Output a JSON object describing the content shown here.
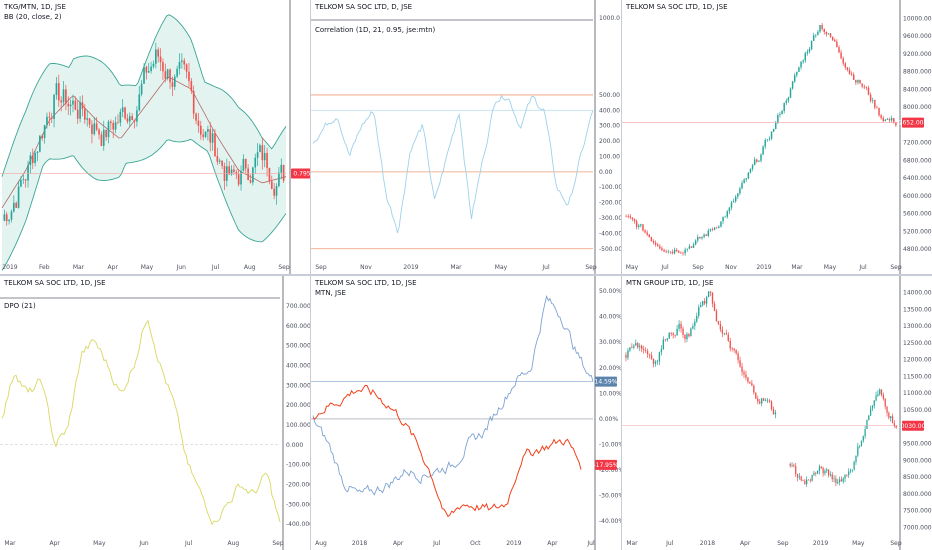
{
  "colors": {
    "up": "#26a69a",
    "down": "#ef5350",
    "bb_band": "#3aa595",
    "bb_fill": "#e3f4f0",
    "bb_mid": "#b26a6a",
    "corr_line": "#9fd1ea",
    "corr_level": "#ef9a72",
    "dpo_line": "#d8d862",
    "spread_blue": "#7ea3d1",
    "spread_red": "#f2411c",
    "price_marker": "#f23645",
    "blue_marker": "#5b84ad"
  },
  "panes": [
    {
      "id": "tkg-mtn",
      "title": "TKG/MTN, 1D, JSE",
      "subtitle": "BB (20, close, 2)",
      "chart_data": {
        "type": "candlestick",
        "x_ticks": [
          "2019",
          "Feb",
          "Mar",
          "Apr",
          "May",
          "Jun",
          "Jul",
          "Aug",
          "Sep"
        ],
        "marker_label": "0.795",
        "y_ticks": [],
        "y_range": [
          0.66,
          1.05
        ],
        "bands": true
      }
    },
    {
      "id": "telkom-corr",
      "title": "TELKOM SA SOC LTD, D, JSE",
      "subtitle": "Correlation (1D, 21, 0.95, jse:mtn)",
      "chart_data": {
        "type": "line",
        "x_ticks": [
          "Sep",
          "Nov",
          "2019",
          "Mar",
          "May",
          "Jul",
          "Sep"
        ],
        "y_ticks": [
          "1000.0",
          "500.00",
          "400.00",
          "300.00",
          "200.00",
          "100.00",
          "0.00",
          "-100.00",
          "-200.00",
          "-300.00",
          "-400.00",
          "-500.00"
        ],
        "y_range": [
          -560,
          1000
        ],
        "levels": [
          500,
          0,
          -500
        ]
      }
    },
    {
      "id": "telkom-price",
      "title": "TELKOM SA SOC LTD, 1D, JSE",
      "chart_data": {
        "type": "candlestick",
        "x_ticks": [
          "May",
          "Jul",
          "Sep",
          "Nov",
          "2019",
          "Mar",
          "May",
          "Jul",
          "Sep"
        ],
        "y_ticks": [
          "10000.000",
          "9600.000",
          "9200.000",
          "8800.000",
          "8400.000",
          "8000.000",
          "7200.000",
          "6800.000",
          "6400.000",
          "6000.000",
          "5600.000",
          "5200.000",
          "4800.000"
        ],
        "y_range": [
          4600,
          10100
        ],
        "marker_label": "7652.000",
        "marker_value": 7652
      }
    },
    {
      "id": "telkom-dpo",
      "title": "TELKOM SA SOC LTD, 1D, JSE",
      "subtitle": "DPO (21)",
      "chart_data": {
        "type": "line",
        "x_ticks": [
          "Mar",
          "Apr",
          "May",
          "Jun",
          "Jul",
          "Aug",
          "Sep"
        ],
        "y_ticks": [
          "700.000",
          "600.000",
          "500.000",
          "400.000",
          "300.000",
          "200.000",
          "100.000",
          "0.000",
          "-100.000",
          "-200.000",
          "-300.000",
          "-400.000"
        ],
        "y_range": [
          -450,
          740
        ],
        "zero_line": 0
      }
    },
    {
      "id": "telkom-mtn-compare",
      "title": "TELKOM SA SOC LTD, 1D, JSE",
      "subtitle": "MTN, JSE",
      "chart_data": {
        "type": "line",
        "x_ticks": [
          "Aug",
          "2018",
          "Apr",
          "Jul",
          "Oct",
          "2019",
          "Apr",
          "Jul"
        ],
        "y_ticks": [
          "50.00%",
          "40.00%",
          "30.00%",
          "20.00%",
          "10.00%",
          "0.00%",
          "-10.00%",
          "-20.00%",
          "-30.00%",
          "-40.00%"
        ],
        "y_range": [
          -45,
          52
        ],
        "marker_blue_label": "14.59%",
        "marker_blue_value": 14.59,
        "marker_red_label": "-17.95%",
        "marker_red_value": -17.95
      }
    },
    {
      "id": "mtn-price",
      "title": "MTN GROUP LTD, 1D, JSE",
      "chart_data": {
        "type": "candlestick",
        "x_ticks": [
          "Mar",
          "Jul",
          "2018",
          "Apr",
          "Sep",
          "2019",
          "May",
          "Sep"
        ],
        "y_ticks": [
          "14000.000",
          "13500.000",
          "13000.000",
          "12500.000",
          "12000.000",
          "11500.000",
          "11000.000",
          "10500.000",
          "9500.000",
          "9000.000",
          "8500.000",
          "8000.000",
          "7500.000",
          "7000.000"
        ],
        "y_range": [
          6800,
          14200
        ],
        "marker_label": "10030.000",
        "marker_value": 10030
      }
    }
  ]
}
